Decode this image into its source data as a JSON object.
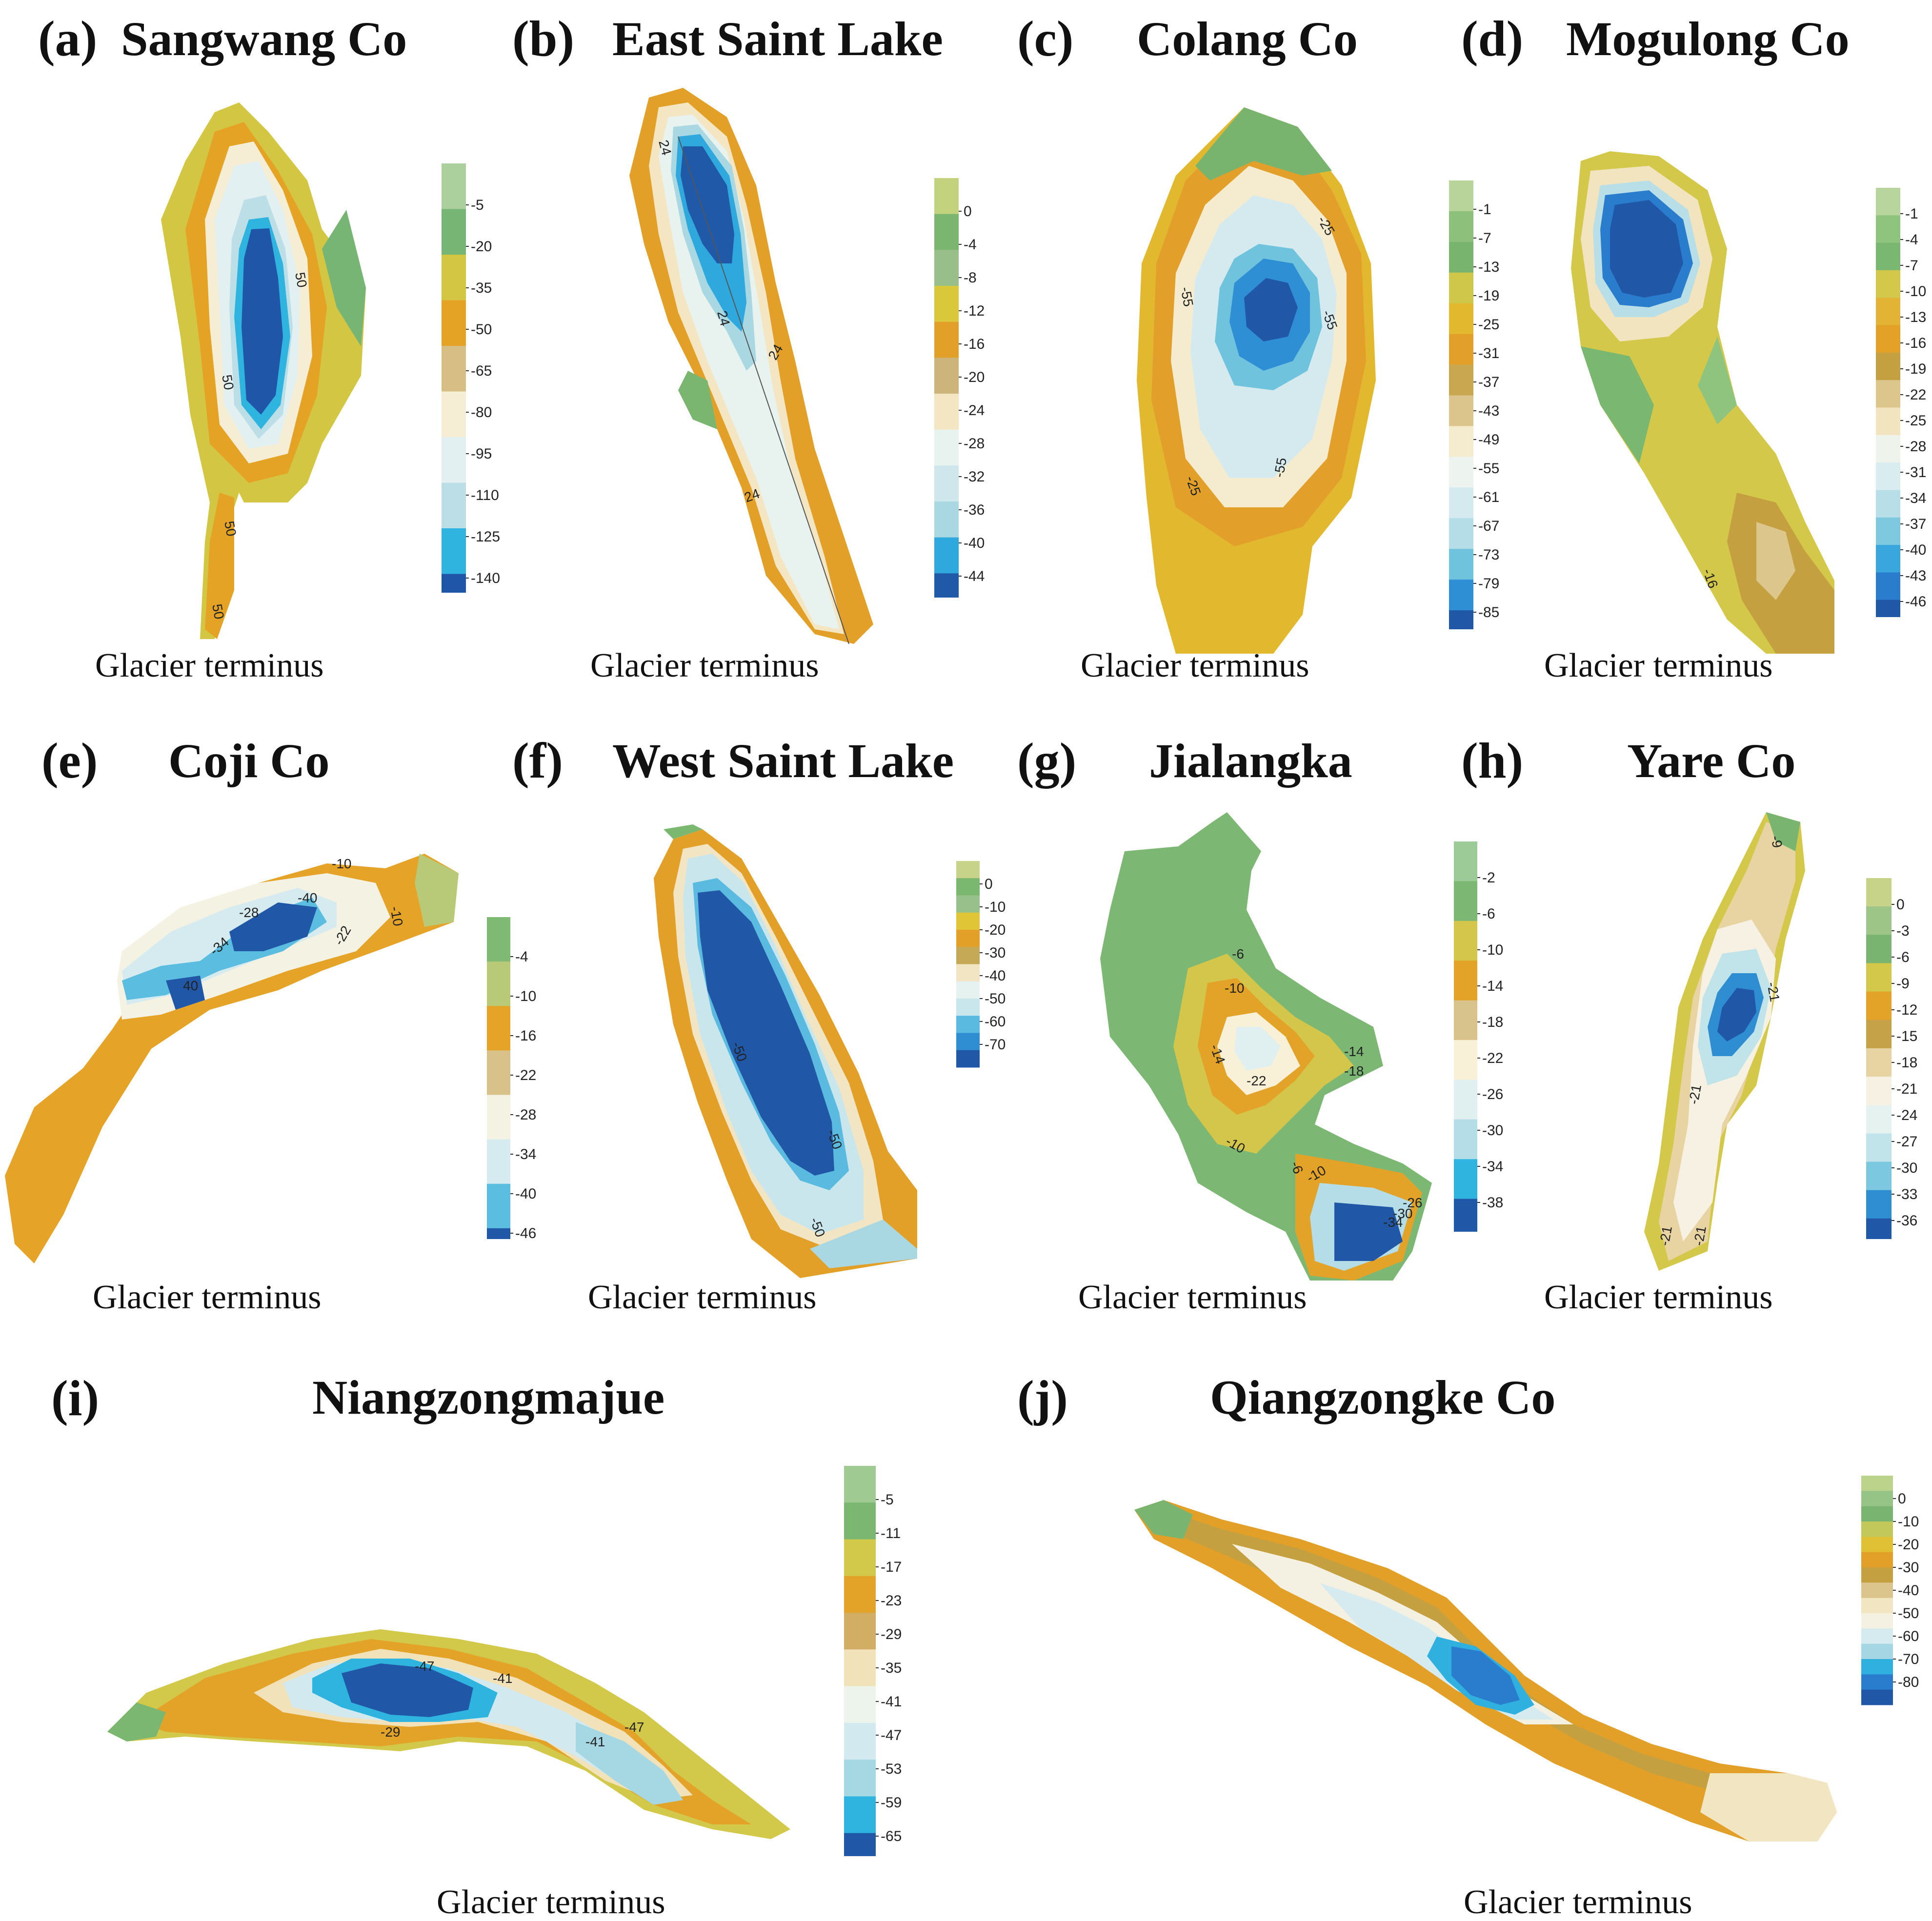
{
  "panels": [
    {
      "id": "a",
      "tag": "(a)",
      "title": "Sangwang Co",
      "footer": "Glacier terminus",
      "legend": [
        "-5",
        "-20",
        "-35",
        "-50",
        "-65",
        "-80",
        "-95",
        "-110",
        "-125",
        "-140"
      ],
      "colors": [
        "#abcf9d",
        "#76b573",
        "#d2c642",
        "#e4a325",
        "#d7be85",
        "#f6eed4",
        "#e3f0f1",
        "#bcdfe7",
        "#2fb3df",
        "#2056a8"
      ],
      "contours": [
        "50",
        "50",
        "50",
        "50"
      ]
    },
    {
      "id": "b",
      "tag": "(b)",
      "title": "East Saint Lake",
      "footer": "Glacier terminus",
      "legend": [
        "0",
        "-4",
        "-8",
        "-12",
        "-16",
        "-20",
        "-24",
        "-28",
        "-32",
        "-36",
        "-40",
        "-44"
      ],
      "colors": [
        "#c3d27c",
        "#7ab66f",
        "#98bf8a",
        "#d8c83a",
        "#e3a028",
        "#cdb47a",
        "#f5e6c3",
        "#e8f2ef",
        "#cfe7ec",
        "#a9d8e2",
        "#2fa8de",
        "#2159a9"
      ],
      "contours": [
        "24",
        "24",
        "24",
        "24"
      ]
    },
    {
      "id": "c",
      "tag": "(c)",
      "title": "Colang Co",
      "footer": "Glacier terminus",
      "legend": [
        "-1",
        "-7",
        "-13",
        "-19",
        "-25",
        "-31",
        "-37",
        "-43",
        "-49",
        "-55",
        "-61",
        "-67",
        "-73",
        "-79",
        "-85"
      ],
      "colors": [
        "#b8d49a",
        "#8dc17b",
        "#79b46f",
        "#cfc74a",
        "#e2b82f",
        "#e2a02a",
        "#c9a751",
        "#dbc58c",
        "#f5ecd0",
        "#edf4ef",
        "#d5eaef",
        "#b4dde7",
        "#6fc3dd",
        "#2f8fd4",
        "#2157a7"
      ],
      "contours": [
        "-25",
        "-55",
        "-55",
        "-55",
        "-25"
      ]
    },
    {
      "id": "d",
      "tag": "(d)",
      "title": "Mogulong Co",
      "footer": "Glacier terminus",
      "legend": [
        "-1",
        "-4",
        "-7",
        "-10",
        "-13",
        "-16",
        "-19",
        "-22",
        "-25",
        "-28",
        "-31",
        "-34",
        "-37",
        "-40",
        "-43",
        "-46"
      ],
      "colors": [
        "#b7d59c",
        "#8fc47f",
        "#7ab872",
        "#d4c84a",
        "#e2b334",
        "#e3a128",
        "#c5a040",
        "#dcc68b",
        "#f2e4bf",
        "#eef4ec",
        "#d9ecef",
        "#b8dfe7",
        "#7fc9e0",
        "#3aa6de",
        "#2a7dcc",
        "#2157a7"
      ],
      "contours": [
        "-16"
      ]
    },
    {
      "id": "e",
      "tag": "(e)",
      "title": "Coji Co",
      "footer": "Glacier terminus",
      "legend": [
        "-4",
        "-10",
        "-16",
        "-22",
        "-28",
        "-34",
        "-40",
        "-46"
      ],
      "colors": [
        "#7fba74",
        "#b8ca78",
        "#e5a328",
        "#d9c18a",
        "#f3f2e3",
        "#d6ebef",
        "#5bbddf",
        "#2157a7"
      ],
      "contours": [
        "-10",
        "-28",
        "-40",
        "-10",
        "-34",
        "-22",
        "40"
      ]
    },
    {
      "id": "f",
      "tag": "(f)",
      "title": "West Saint Lake",
      "footer": "Glacier terminus",
      "legend": [
        "0",
        "-10",
        "-20",
        "-30",
        "-40",
        "-50",
        "-60",
        "-70"
      ],
      "colors": [
        "#c8d38a",
        "#7ab870",
        "#98c08a",
        "#e0c636",
        "#e3a028",
        "#c6a957",
        "#f1e5c4",
        "#e6f2ef",
        "#c9e6ec",
        "#5bbadf",
        "#2f8dd2",
        "#2157a7"
      ],
      "contours": [
        "-50",
        "-50",
        "-50"
      ]
    },
    {
      "id": "g",
      "tag": "(g)",
      "title": "Jialangka",
      "footer": "Glacier terminus",
      "legend": [
        "-2",
        "-6",
        "-10",
        "-14",
        "-18",
        "-22",
        "-26",
        "-30",
        "-34",
        "-38"
      ],
      "colors": [
        "#9ccb97",
        "#7cb873",
        "#d3c64a",
        "#e3a228",
        "#d9c38c",
        "#f8f1d8",
        "#e0eff0",
        "#b4dde7",
        "#2fb3df",
        "#2157a7"
      ],
      "contours": [
        "-6",
        "-10",
        "-14",
        "-14",
        "-18",
        "-22",
        "-10",
        "-6",
        "-10",
        "-26",
        "-30",
        "-34"
      ]
    },
    {
      "id": "h",
      "tag": "(h)",
      "title": "Yare Co",
      "footer": "Glacier terminus",
      "legend": [
        "0",
        "-3",
        "-6",
        "-9",
        "-12",
        "-15",
        "-18",
        "-21",
        "-24",
        "-27",
        "-30",
        "-33",
        "-36"
      ],
      "colors": [
        "#c8d38a",
        "#9cc587",
        "#79b470",
        "#d4c84a",
        "#e3a228",
        "#c5a247",
        "#e8d4a2",
        "#f6f1e2",
        "#e6f2ef",
        "#c1e3ea",
        "#7cc8e0",
        "#2f8dd2",
        "#2157a7"
      ],
      "contours": [
        "-9",
        "-21",
        "-21",
        "-21",
        "-21"
      ]
    },
    {
      "id": "i",
      "tag": "(i)",
      "title": "Niangzongmajue",
      "footer": "Glacier terminus",
      "legend": [
        "-5",
        "-11",
        "-17",
        "-23",
        "-29",
        "-35",
        "-41",
        "-47",
        "-53",
        "-59",
        "-65"
      ],
      "colors": [
        "#9fcb93",
        "#7bb771",
        "#d2c84a",
        "#e3a228",
        "#d2ae65",
        "#f1e2b9",
        "#edf4ec",
        "#d2e9ef",
        "#a6d8e3",
        "#2fb3df",
        "#2157a7"
      ],
      "contours": [
        "-47",
        "-41",
        "-29",
        "-41",
        "-47"
      ]
    },
    {
      "id": "j",
      "tag": "(j)",
      "title": "Qiangzongke Co",
      "footer": "Glacier terminus",
      "legend": [
        "0",
        "-10",
        "-20",
        "-30",
        "-40",
        "-50",
        "-60",
        "-70",
        "-80"
      ],
      "colors": [
        "#bcd38b",
        "#96c386",
        "#79b470",
        "#c2c85a",
        "#e0c136",
        "#e3a028",
        "#c5a040",
        "#dcc58d",
        "#f2e5c2",
        "#f4f1e3",
        "#d6ebef",
        "#a4d6e3",
        "#2fb0df",
        "#2a7dcc",
        "#2157a7"
      ],
      "contours": []
    }
  ]
}
